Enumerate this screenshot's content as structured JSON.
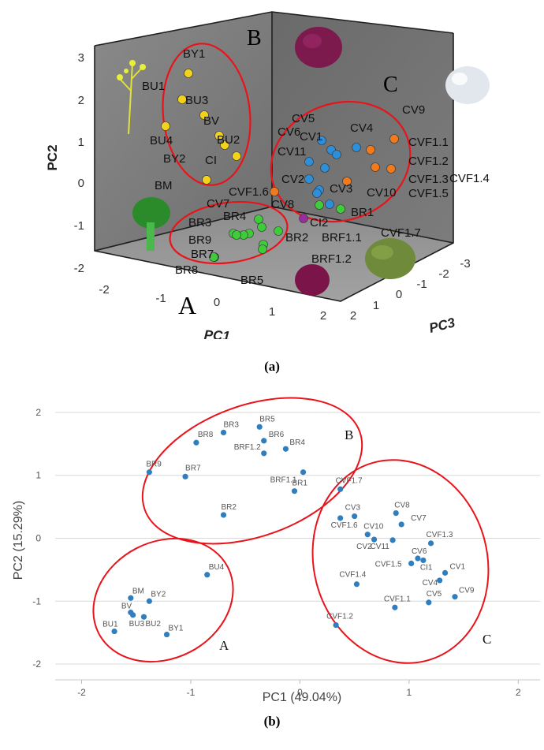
{
  "captions": {
    "a": "(a)",
    "b": "(b)"
  },
  "colors": {
    "red_ellipse": "#e8141b",
    "yellow": "#f2d21b",
    "blue": "#2f8ed8",
    "orange": "#f07a1c",
    "purple": "#9b2c9e",
    "green": "#3fcc3b",
    "scatter_blue": "#2f7fc0",
    "grid": "#d8d8d8"
  },
  "chart_data": [
    {
      "type": "scatter",
      "title": "",
      "xlabel": "PC1",
      "ylabel": "PC2",
      "zlabel": "PC3",
      "xticks": [
        "-2",
        "-1",
        "0",
        "1",
        "2"
      ],
      "yticks": [
        "3",
        "2",
        "1",
        "0",
        "-1",
        "-2"
      ],
      "zticks": [
        "2",
        "1",
        "0",
        "-1",
        "-2",
        "-3"
      ],
      "group_labels": [
        "A",
        "B",
        "C"
      ],
      "legend": "none",
      "series": [
        {
          "color_key": "yellow",
          "labels": [
            "BY1",
            "BU1",
            "BU3",
            "BV",
            "BU4",
            "BU2",
            "BY2",
            "CI",
            "BM"
          ]
        },
        {
          "color_key": "blue",
          "labels": [
            "CV5",
            "CV6",
            "CV1",
            "CV4",
            "CV11",
            "CV2",
            "CV3",
            "CV8",
            "CV7",
            "CV9"
          ]
        },
        {
          "color_key": "orange",
          "labels": [
            "CVF1.1",
            "CVF1.2",
            "CVF1.3",
            "CVF1.4",
            "CVF1.5",
            "CVF1.6",
            "CV10"
          ]
        },
        {
          "color_key": "purple",
          "labels": [
            "CI2"
          ]
        },
        {
          "color_key": "green",
          "labels": [
            "BR1",
            "BR2",
            "BR3",
            "BR4",
            "BR5",
            "BR7",
            "BR8",
            "BR9",
            "BRF1.1",
            "BRF1.2",
            "CVF1.7"
          ]
        }
      ]
    },
    {
      "type": "scatter",
      "title": "",
      "xlabel": "PC1 (49.04%)",
      "ylabel": "PC2 (15.29%)",
      "xlim": [
        -2.3,
        2.2
      ],
      "ylim": [
        -2.25,
        2.25
      ],
      "xticks": [
        -2,
        -1,
        0,
        1,
        2
      ],
      "yticks": [
        -2,
        -1,
        0,
        1,
        2
      ],
      "grid": "horizontal",
      "legend": "none",
      "group_labels": [
        "A",
        "B",
        "C"
      ],
      "points": [
        {
          "label": "BU4",
          "x": -0.85,
          "y": -0.58
        },
        {
          "label": "BM",
          "x": -1.55,
          "y": -0.95
        },
        {
          "label": "BY2",
          "x": -1.38,
          "y": -1.0
        },
        {
          "label": "BU1",
          "x": -1.7,
          "y": -1.48
        },
        {
          "label": "BV",
          "x": -1.55,
          "y": -1.18
        },
        {
          "label": "BU3",
          "x": -1.53,
          "y": -1.22
        },
        {
          "label": "BU2",
          "x": -1.43,
          "y": -1.25
        },
        {
          "label": "BY1",
          "x": -1.22,
          "y": -1.53
        },
        {
          "label": "BR8",
          "x": -0.95,
          "y": 1.52
        },
        {
          "label": "BR3",
          "x": -0.7,
          "y": 1.68
        },
        {
          "label": "BR5",
          "x": -0.37,
          "y": 1.77
        },
        {
          "label": "BR6",
          "x": -0.33,
          "y": 1.55
        },
        {
          "label": "BRF1.2",
          "x": -0.33,
          "y": 1.35
        },
        {
          "label": "BR4",
          "x": -0.13,
          "y": 1.42
        },
        {
          "label": "BR9",
          "x": -1.38,
          "y": 1.05
        },
        {
          "label": "BR7",
          "x": -1.05,
          "y": 0.98
        },
        {
          "label": "BRF1.1",
          "x": 0.03,
          "y": 1.05
        },
        {
          "label": "BR1",
          "x": -0.05,
          "y": 0.75
        },
        {
          "label": "BR2",
          "x": -0.7,
          "y": 0.37
        },
        {
          "label": "CVF1.7",
          "x": 0.37,
          "y": 0.78
        },
        {
          "label": "CV3",
          "x": 0.5,
          "y": 0.35
        },
        {
          "label": "CVF1.6",
          "x": 0.37,
          "y": 0.32
        },
        {
          "label": "CV8",
          "x": 0.88,
          "y": 0.4
        },
        {
          "label": "CV7",
          "x": 0.93,
          "y": 0.22
        },
        {
          "label": "CV10",
          "x": 0.62,
          "y": 0.06
        },
        {
          "label": "CV11",
          "x": 0.68,
          "y": -0.02
        },
        {
          "label": "CV2",
          "x": 0.85,
          "y": -0.03
        },
        {
          "label": "CVF1.3",
          "x": 1.2,
          "y": -0.08
        },
        {
          "label": "CV6",
          "x": 1.08,
          "y": -0.32
        },
        {
          "label": "CVF1.5",
          "x": 1.02,
          "y": -0.4
        },
        {
          "label": "CI1",
          "x": 1.13,
          "y": -0.35
        },
        {
          "label": "CV1",
          "x": 1.33,
          "y": -0.55
        },
        {
          "label": "CV4",
          "x": 1.28,
          "y": -0.67
        },
        {
          "label": "CVF1.4",
          "x": 0.52,
          "y": -0.73
        },
        {
          "label": "CV5",
          "x": 1.18,
          "y": -1.02
        },
        {
          "label": "CV9",
          "x": 1.42,
          "y": -0.93
        },
        {
          "label": "CVF1.1",
          "x": 0.87,
          "y": -1.1
        },
        {
          "label": "CVF1.2",
          "x": 0.33,
          "y": -1.38
        }
      ]
    }
  ]
}
